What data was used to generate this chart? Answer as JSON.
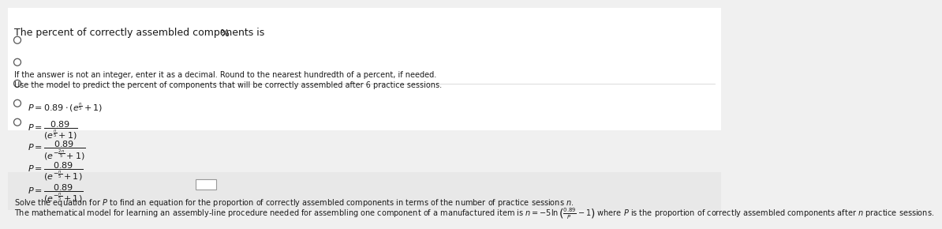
{
  "bg_color": "#f0f0f0",
  "white": "#ffffff",
  "text_color": "#1a1a1a",
  "circle_edge": "#555555",
  "light_gray": "#e8e8e8",
  "separator_color": "#cccccc",
  "box_border": "#999999",
  "title": "The mathematical model for learning an assembly-line procedure needed for assembling one component of a manufactured item is $n = -5\\ln\\left(\\frac{0.89}{P} - 1\\right)$ where $P$ is the proportion of correctly assembled components after $n$ practice sessions.",
  "solve": "Solve the equation for $P$ to find an equation for the proportion of correctly assembled components in terms of the number of practice sessions $n$.",
  "opt1": "$P = \\dfrac{0.89}{(e^{-\\frac{n}{5}}+1)}$",
  "opt2": "$P = \\dfrac{0.89}{(e^{-\\frac{n}{5}}+1)}$",
  "opt3": "$P = \\dfrac{0.89}{(e^{-\\frac{2n}{5}}+1)}$",
  "opt4": "$P = \\dfrac{0.89}{(e^{\\frac{n}{5}}+1)}$",
  "opt5": "$P = 0.89 \\cdot (e^{\\frac{n}{5}}+1)$",
  "use_model": "Use the model to predict the percent of components that will be correctly assembled after 6 practice sessions.",
  "rounding": "If the answer is not an integer, enter it as a decimal. Round to the nearest hundredth of a percent, if needed.",
  "answer_prefix": "The percent of correctly assembled components is",
  "answer_suffix": "%",
  "fs_body": 7.0,
  "fs_option": 8.0,
  "fs_answer": 9.0
}
